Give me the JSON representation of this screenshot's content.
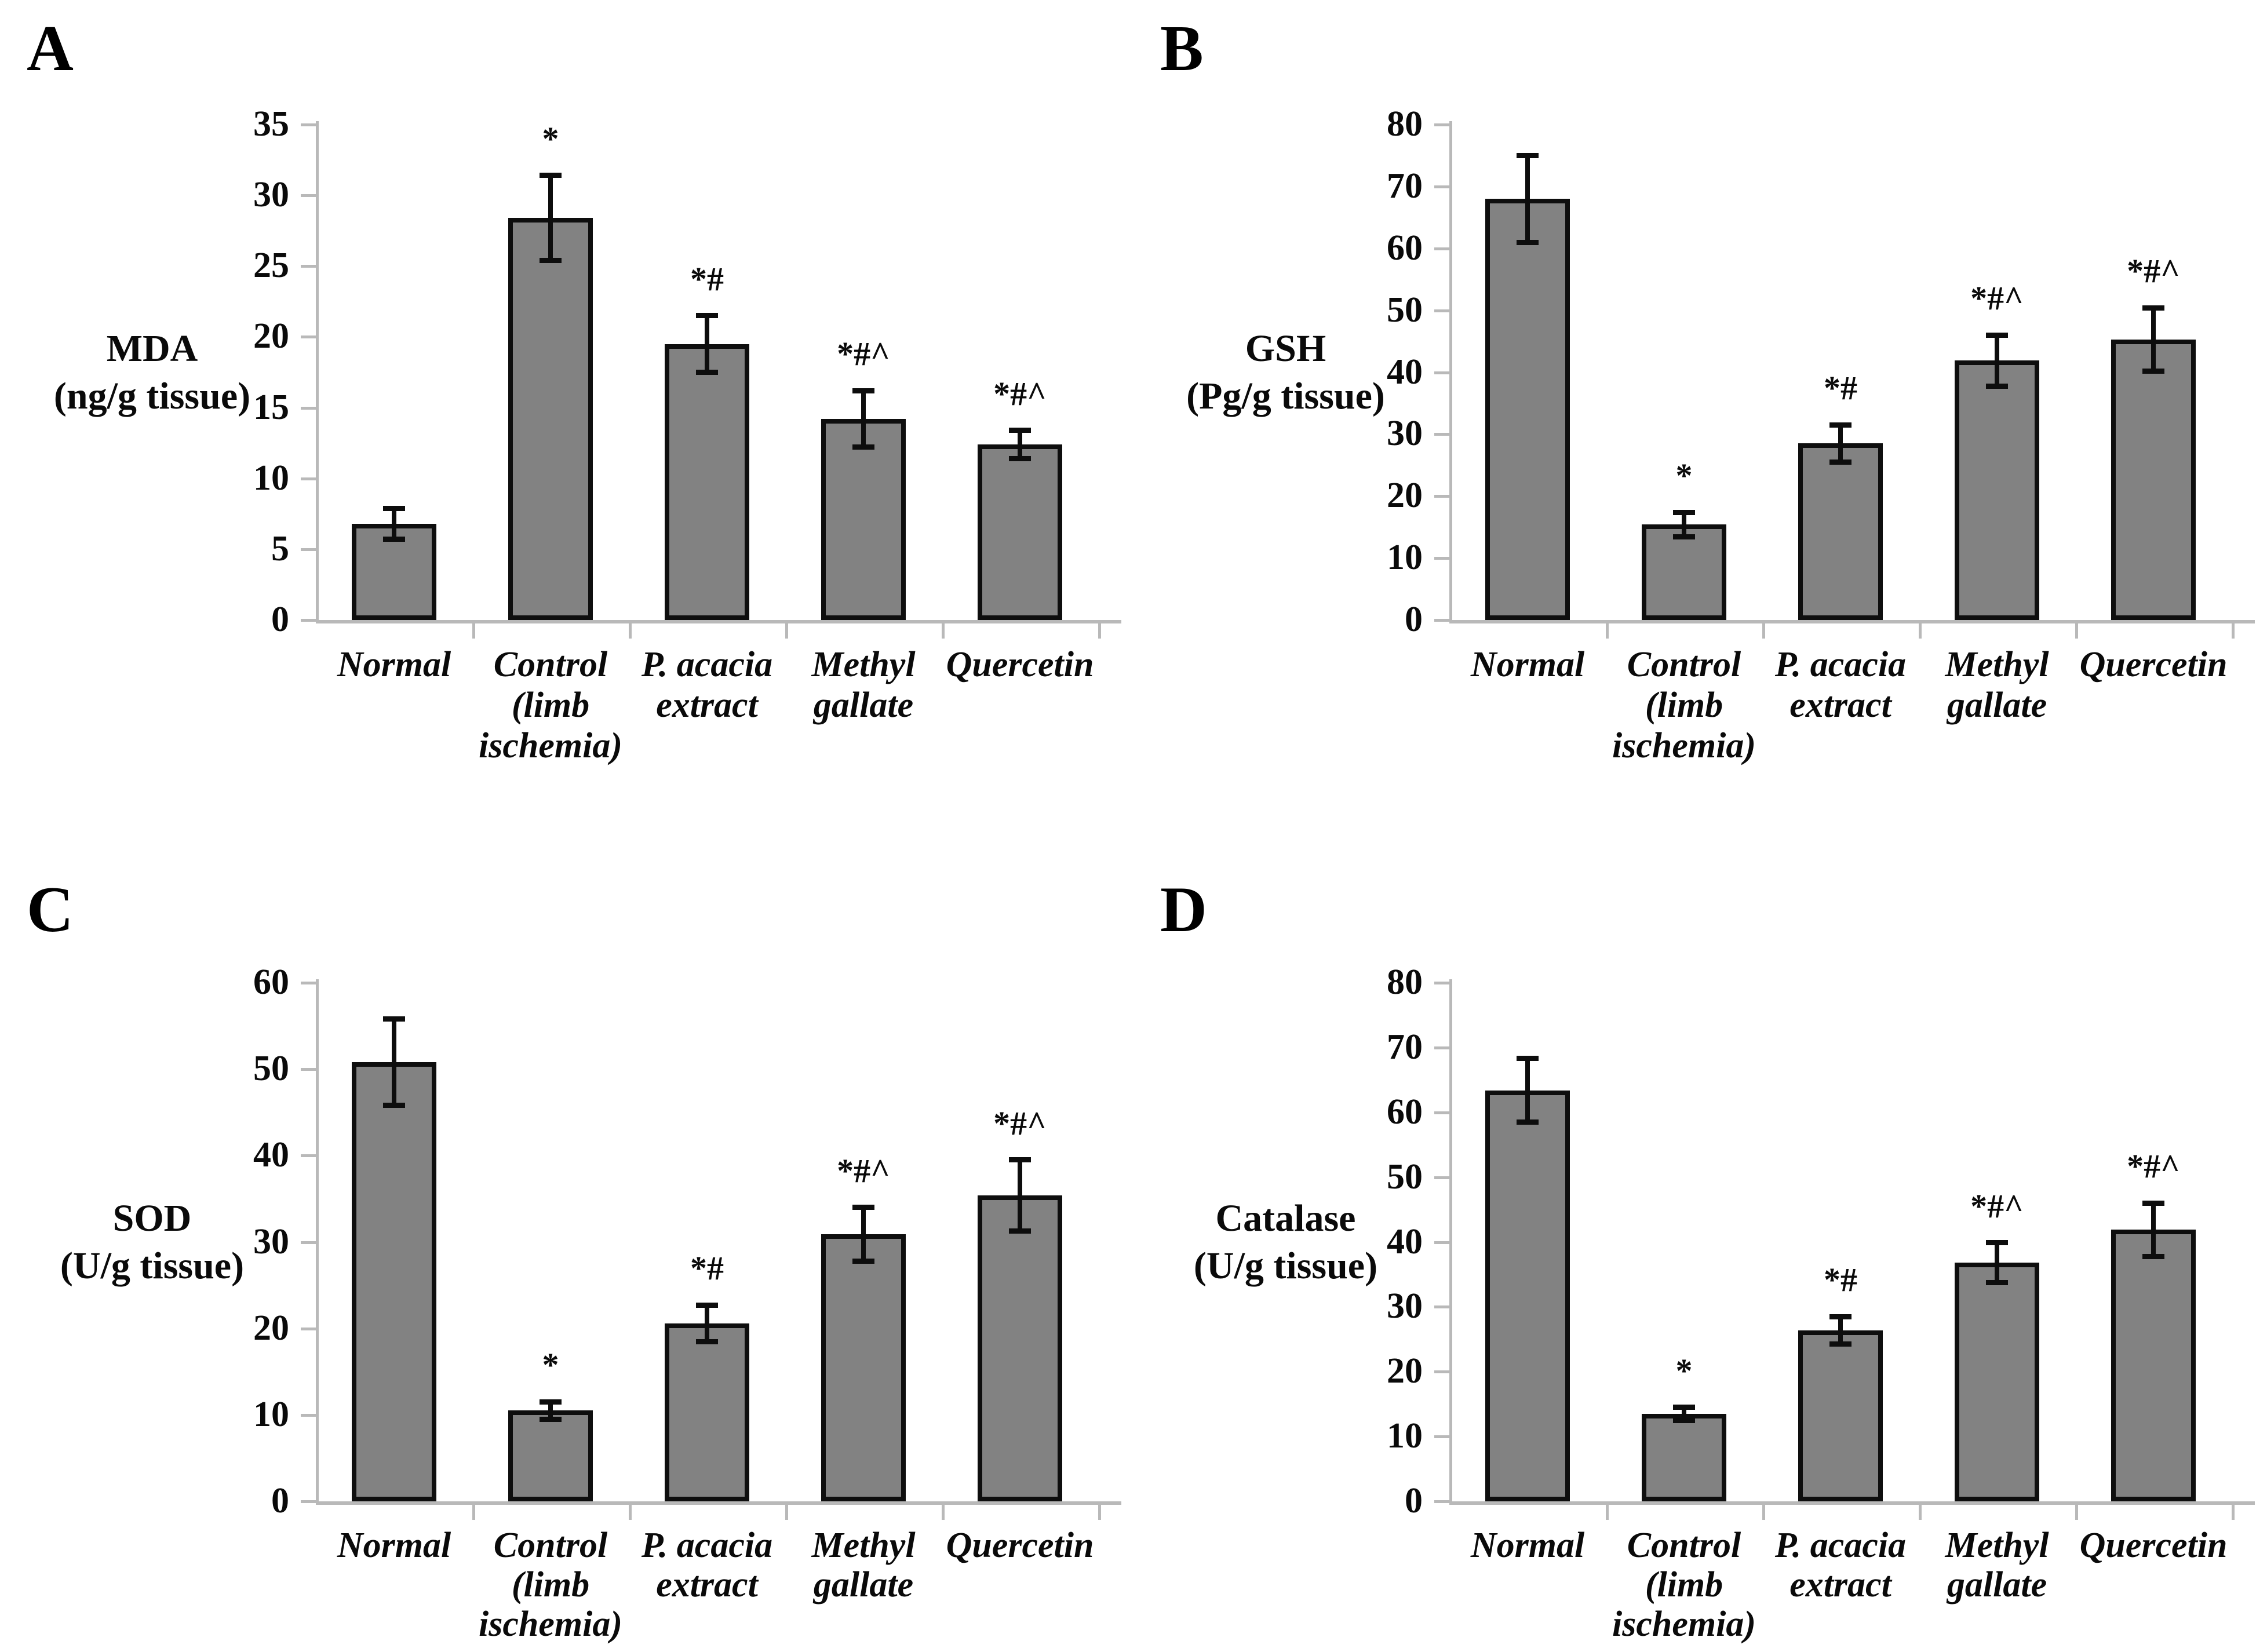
{
  "figure": {
    "background": "#ffffff",
    "bar_fill": "#828282",
    "bar_border": "#0e0e0e",
    "axis_color": "#b9b9b9",
    "error_color": "#0d0d0d",
    "text_color": "#0a0a0a"
  },
  "chart_data": [
    {
      "panel_label": "A",
      "type": "bar",
      "title": "",
      "xlabel": "",
      "ylabel": "MDA (ng/g tissue)",
      "ylabel_lines": [
        "MDA",
        "(ng/g tissue)"
      ],
      "ylim": [
        0,
        35
      ],
      "yticks": [
        0,
        5,
        10,
        15,
        20,
        25,
        30,
        35
      ],
      "grid": false,
      "legend": "none",
      "categories": [
        "Normal",
        "Control (limb ischemia)",
        "P. acacia extract",
        "Methyl gallate",
        "Quercetin"
      ],
      "category_lines": [
        [
          "Normal"
        ],
        [
          "Control",
          "(limb",
          "ischemia)"
        ],
        [
          "P. acacia",
          "extract"
        ],
        [
          "Methyl",
          "gallate"
        ],
        [
          "Quercetin"
        ]
      ],
      "values": [
        6.8,
        28.4,
        19.5,
        14.2,
        12.4
      ],
      "errors": [
        1.1,
        3.0,
        2.0,
        2.0,
        1.0
      ],
      "annotations": [
        "",
        "*",
        "*#",
        "*#^",
        "*#^"
      ]
    },
    {
      "panel_label": "B",
      "type": "bar",
      "title": "",
      "xlabel": "",
      "ylabel": "GSH (Pg/g tissue)",
      "ylabel_lines": [
        "GSH",
        "(Pg/g tissue)"
      ],
      "ylim": [
        0,
        80
      ],
      "yticks": [
        0,
        10,
        20,
        30,
        40,
        50,
        60,
        70,
        80
      ],
      "grid": false,
      "legend": "none",
      "categories": [
        "Normal",
        "Control (limb ischemia)",
        "P. acacia extract",
        "Methyl gallate",
        "Quercetin"
      ],
      "category_lines": [
        [
          "Normal"
        ],
        [
          "Control",
          "(limb",
          "ischemia)"
        ],
        [
          "P. acacia",
          "extract"
        ],
        [
          "Methyl",
          "gallate"
        ],
        [
          "Quercetin"
        ]
      ],
      "values": [
        68.0,
        15.4,
        28.5,
        41.9,
        45.3
      ],
      "errors": [
        7.0,
        2.0,
        3.0,
        4.1,
        5.1
      ],
      "annotations": [
        "",
        "*",
        "*#",
        "*#^",
        "*#^"
      ]
    },
    {
      "panel_label": "C",
      "type": "bar",
      "title": "",
      "xlabel": "",
      "ylabel": "SOD (U/g tissue)",
      "ylabel_lines": [
        "SOD",
        "(U/g tissue)"
      ],
      "ylim": [
        0,
        60
      ],
      "yticks": [
        0,
        10,
        20,
        30,
        40,
        50,
        60
      ],
      "grid": false,
      "legend": "none",
      "categories": [
        "Normal",
        "Control (limb ischemia)",
        "P. acacia extract",
        "Methyl gallate",
        "Quercetin"
      ],
      "category_lines": [
        [
          "Normal"
        ],
        [
          "Control",
          "(limb",
          "ischemia)"
        ],
        [
          "P. acacia",
          "extract"
        ],
        [
          "Methyl",
          "gallate"
        ],
        [
          "Quercetin"
        ]
      ],
      "values": [
        50.8,
        10.5,
        20.6,
        30.9,
        35.4
      ],
      "errors": [
        5.0,
        1.0,
        2.1,
        3.1,
        4.1
      ],
      "annotations": [
        "",
        "*",
        "*#",
        "*#^",
        "*#^"
      ]
    },
    {
      "panel_label": "D",
      "type": "bar",
      "title": "",
      "xlabel": "",
      "ylabel": "Catalase (U/g tissue)",
      "ylabel_lines": [
        "Catalase",
        "(U/g tissue)"
      ],
      "ylim": [
        0,
        80
      ],
      "yticks": [
        0,
        10,
        20,
        30,
        40,
        50,
        60,
        70,
        80
      ],
      "grid": false,
      "legend": "none",
      "categories": [
        "Normal",
        "Control (limb ischemia)",
        "P. acacia extract",
        "Methyl gallate",
        "Quercetin"
      ],
      "category_lines": [
        [
          "Normal"
        ],
        [
          "Control",
          "(limb",
          "ischemia)"
        ],
        [
          "P. acacia",
          "extract"
        ],
        [
          "Methyl",
          "gallate"
        ],
        [
          "Quercetin"
        ]
      ],
      "values": [
        63.4,
        13.5,
        26.4,
        36.8,
        41.9
      ],
      "errors": [
        4.9,
        1.0,
        2.1,
        3.1,
        4.1
      ],
      "annotations": [
        "",
        "*",
        "*#",
        "*#^",
        "*#^"
      ]
    }
  ]
}
